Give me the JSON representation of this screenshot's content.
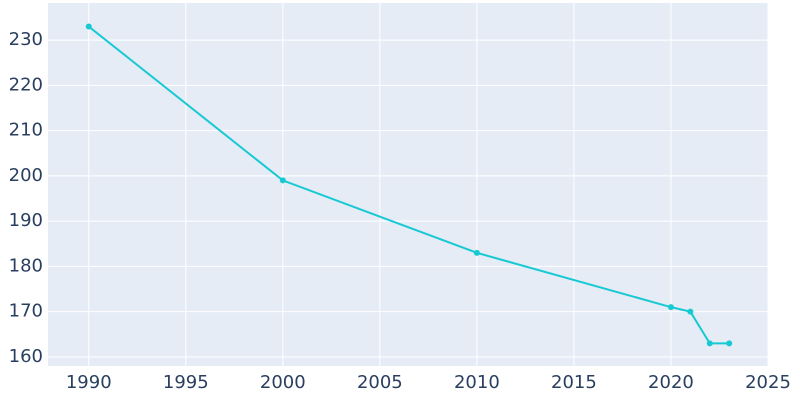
{
  "chart_data": {
    "type": "line",
    "x": [
      1990,
      2000,
      2010,
      2020,
      2021,
      2022,
      2023
    ],
    "series": [
      {
        "color": "#17c9d3",
        "values": [
          233,
          199,
          183,
          171,
          170,
          163,
          163
        ]
      }
    ],
    "xlim": [
      1987.9,
      2025
    ],
    "xticks": [
      1990,
      1995,
      2000,
      2005,
      2010,
      2015,
      2020,
      2025
    ],
    "ylim": [
      158,
      238.2
    ],
    "yticks": [
      160,
      170,
      180,
      190,
      200,
      210,
      220,
      230
    ],
    "grid": true
  }
}
